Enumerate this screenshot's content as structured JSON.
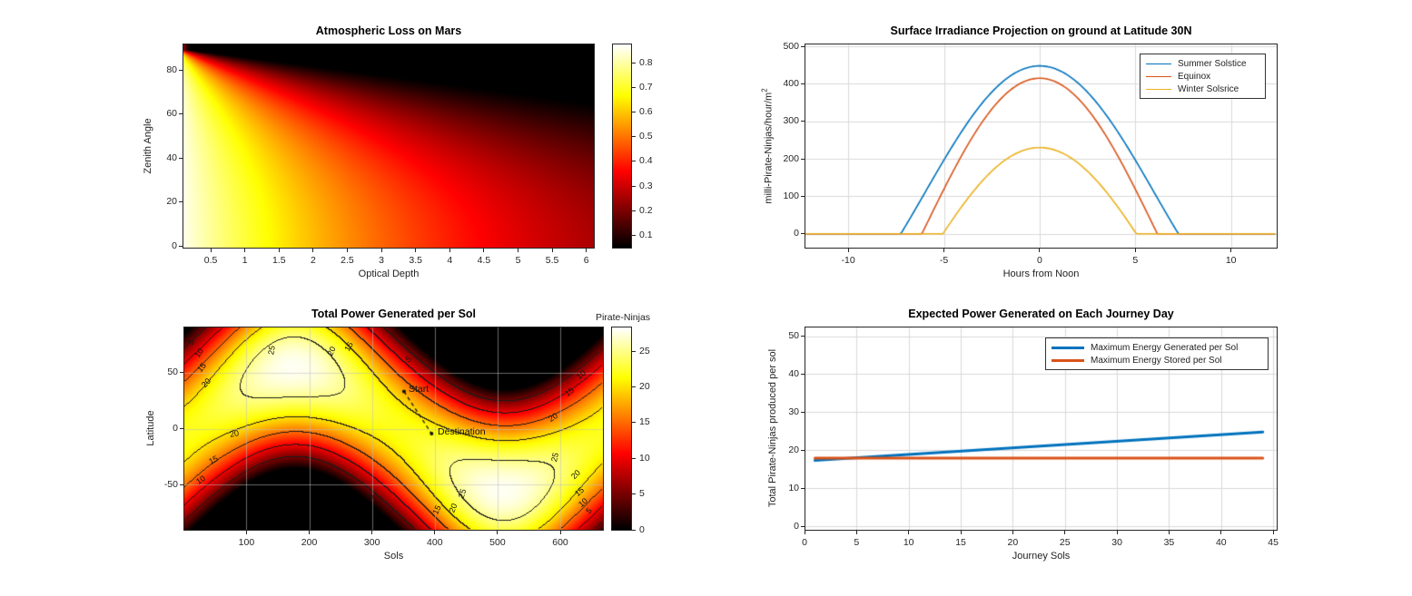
{
  "figure": {
    "background": "#ffffff"
  },
  "colors": {
    "matlab_blue": "#0072BD",
    "matlab_orange": "#D95319",
    "matlab_yellow": "#EDB120",
    "axis_text": "#262626",
    "grid_line": "#d9d9d9",
    "image_grid_line": "#bebebe",
    "contour_line": "#1a1a1a"
  },
  "chart_data": [
    {
      "id": "atmospheric_loss",
      "type": "heatmap",
      "title": "Atmospheric Loss on Mars",
      "xlabel": "Optical Depth",
      "ylabel": "Zenith Angle",
      "xlim": [
        0.1,
        6.11
      ],
      "ylim": [
        0,
        91.7
      ],
      "x_ticks": [
        0.5,
        1,
        1.5,
        2,
        2.5,
        3,
        3.5,
        4,
        4.5,
        5,
        5.5,
        6
      ],
      "y_ticks": [
        0,
        20,
        40,
        60,
        80
      ],
      "grid": false,
      "colormap": "hot",
      "clim": [
        0.05,
        0.875
      ],
      "surface_model": "value = 0.875*exp(-0.2*tau*airmass), airmass = 1/cos(zenith), zenith capped at 89.2deg",
      "colorbar": {
        "ticks": [
          0.1,
          0.2,
          0.3,
          0.4,
          0.5,
          0.6,
          0.7,
          0.8
        ]
      }
    },
    {
      "id": "surface_irradiance",
      "type": "line",
      "title": "Surface Irradiance Projection on ground at Latitude 30N",
      "xlabel": "Hours from Noon",
      "ylabel_base": "milli-Pirate-Ninjas/hour/m",
      "ylabel_sup": "2",
      "xlim": [
        -12.25,
        12.35
      ],
      "ylim": [
        -40,
        506
      ],
      "x_ticks": [
        -10,
        -5,
        0,
        5,
        10
      ],
      "y_ticks": [
        0,
        100,
        200,
        300,
        400,
        500
      ],
      "grid": true,
      "legend": {
        "position": "northeast"
      },
      "series_model": "y(h) = peak*max(0,(cos(15h deg)-cos(15*sunset deg))/(1-cos(15*sunset deg)))",
      "series": [
        {
          "name": "Summer Solstice",
          "color": "#0072BD",
          "peak": 448,
          "sunset_hour": 7.25
        },
        {
          "name": "Equinox",
          "color": "#D95319",
          "peak": 415,
          "sunset_hour": 6.15
        },
        {
          "name": "Winter Solsrice",
          "color": "#EDB120",
          "peak": 230,
          "sunset_hour": 5.05
        }
      ]
    },
    {
      "id": "total_power_per_sol",
      "type": "filled-contour",
      "title": "Total Power Generated per Sol",
      "xlabel": "Sols",
      "ylabel": "Latitude",
      "xlim": [
        1,
        668
      ],
      "ylim": [
        -90,
        90
      ],
      "x_ticks": [
        100,
        200,
        300,
        400,
        500,
        600
      ],
      "y_ticks": [
        -50,
        0,
        50
      ],
      "grid": true,
      "levels": [
        5,
        10,
        15,
        20,
        25
      ],
      "colormap": "hot",
      "clim": [
        0,
        28.3
      ],
      "surface_model": "z(sol,lat) = max(0, (25 + 3*sin(4*pi*(sol-90)/668)) * cos(lat - 55*sin(2*pi*(sol-10)/668)))",
      "colorbar": {
        "title": "Pirate-Ninjas",
        "ticks": [
          0,
          5,
          10,
          15,
          20,
          25
        ]
      },
      "annotations": {
        "start": {
          "label": "Start",
          "sol": 351,
          "lat": 33
        },
        "destination": {
          "label": "Destination",
          "sol": 395,
          "lat": -4.5
        },
        "path_style": "dashed"
      },
      "contour_labels": [
        {
          "v": "5",
          "fx": 0.027,
          "fy": 0.075,
          "rot": -62
        },
        {
          "v": "10",
          "fx": 0.04,
          "fy": 0.132,
          "rot": -55
        },
        {
          "v": "15",
          "fx": 0.046,
          "fy": 0.201,
          "rot": -50
        },
        {
          "v": "20",
          "fx": 0.056,
          "fy": 0.279,
          "rot": -48
        },
        {
          "v": "25",
          "fx": 0.212,
          "fy": 0.118,
          "rot": -80
        },
        {
          "v": "20",
          "fx": 0.355,
          "fy": 0.122,
          "rot": -65
        },
        {
          "v": "15",
          "fx": 0.396,
          "fy": 0.1,
          "rot": -60
        },
        {
          "v": "5",
          "fx": 0.545,
          "fy": 0.16,
          "rot": -35
        },
        {
          "v": "10",
          "fx": 0.952,
          "fy": 0.238,
          "rot": -38
        },
        {
          "v": "15",
          "fx": 0.924,
          "fy": 0.322,
          "rot": -36
        },
        {
          "v": "20",
          "fx": 0.885,
          "fy": 0.448,
          "rot": -33
        },
        {
          "v": "20",
          "fx": 0.124,
          "fy": 0.528,
          "rot": -10
        },
        {
          "v": "15",
          "fx": 0.073,
          "fy": 0.66,
          "rot": -28
        },
        {
          "v": "10",
          "fx": 0.044,
          "fy": 0.757,
          "rot": -33
        },
        {
          "v": "5",
          "fx": 0.456,
          "fy": 0.84,
          "rot": -48
        },
        {
          "v": "15",
          "fx": 0.608,
          "fy": 0.905,
          "rot": -65
        },
        {
          "v": "20",
          "fx": 0.646,
          "fy": 0.898,
          "rot": -68
        },
        {
          "v": "25",
          "fx": 0.669,
          "fy": 0.823,
          "rot": -72
        },
        {
          "v": "25",
          "fx": 0.889,
          "fy": 0.645,
          "rot": -76
        },
        {
          "v": "20",
          "fx": 0.94,
          "fy": 0.733,
          "rot": -45
        },
        {
          "v": "15",
          "fx": 0.948,
          "fy": 0.815,
          "rot": -42
        },
        {
          "v": "10",
          "fx": 0.957,
          "fy": 0.868,
          "rot": -40
        },
        {
          "v": "5",
          "fx": 0.977,
          "fy": 0.912,
          "rot": -45
        }
      ]
    },
    {
      "id": "journey_power",
      "type": "line",
      "title": "Expected Power Generated on Each Journey Day",
      "xlabel": "Journey Sols",
      "ylabel": "Total Pirate-Ninjas produced per sol",
      "xlim": [
        0,
        45.3
      ],
      "ylim": [
        -1,
        52.3
      ],
      "x_ticks": [
        0,
        5,
        10,
        15,
        20,
        25,
        30,
        35,
        40,
        45
      ],
      "y_ticks": [
        0,
        10,
        20,
        30,
        40,
        50
      ],
      "grid": true,
      "legend": {
        "position": "northeast"
      },
      "series": [
        {
          "name": "Maximum Energy Generated per Sol",
          "color": "#0072BD",
          "model": "linear",
          "x": [
            1,
            44
          ],
          "y": [
            17.3,
            24.8
          ]
        },
        {
          "name": "Maximum Energy Stored per Sol",
          "color": "#D95319",
          "model": "constant",
          "x": [
            1,
            44
          ],
          "y": [
            17.9,
            17.9
          ]
        }
      ]
    }
  ]
}
